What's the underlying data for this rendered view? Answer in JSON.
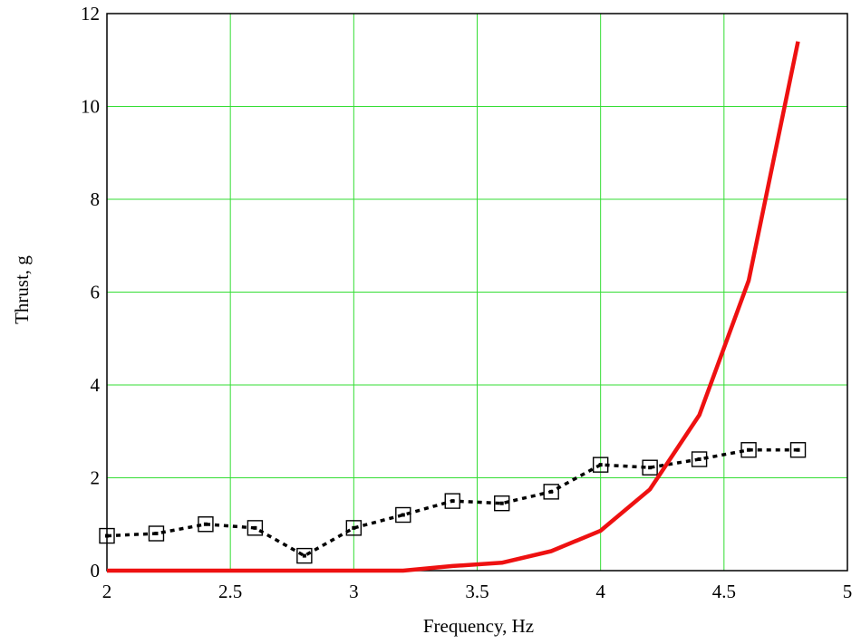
{
  "chart_data": {
    "type": "line",
    "xlabel": "Frequency, Hz",
    "ylabel": "Thrust, g",
    "xlim": [
      2,
      5
    ],
    "ylim": [
      0,
      12
    ],
    "xticks": [
      2,
      2.5,
      3,
      3.5,
      4,
      4.5,
      5
    ],
    "xtick_labels": [
      "2",
      "2.5",
      "3",
      "3.5",
      "4",
      "4.5",
      "5"
    ],
    "yticks": [
      0,
      2,
      4,
      6,
      8,
      10,
      12
    ],
    "ytick_labels": [
      "0",
      "2",
      "4",
      "6",
      "8",
      "10",
      "12"
    ],
    "grid": true,
    "grid_color": "#33dd33",
    "series": [
      {
        "style": "dotted-square-markers",
        "color": "#000000",
        "x": [
          2.0,
          2.2,
          2.4,
          2.6,
          2.8,
          3.0,
          3.2,
          3.4,
          3.6,
          3.8,
          4.0,
          4.2,
          4.4,
          4.6,
          4.8
        ],
        "y": [
          0.75,
          0.8,
          1.0,
          0.92,
          0.32,
          0.92,
          1.2,
          1.5,
          1.45,
          1.7,
          2.28,
          2.22,
          2.4,
          2.6,
          2.6
        ]
      },
      {
        "style": "solid",
        "color": "#ee1111",
        "x": [
          2.0,
          2.2,
          2.4,
          2.6,
          2.8,
          3.0,
          3.2,
          3.4,
          3.6,
          3.8,
          4.0,
          4.2,
          4.4,
          4.6,
          4.8
        ],
        "y": [
          0,
          0,
          0,
          0,
          0,
          0,
          0,
          0.1,
          0.17,
          0.42,
          0.86,
          1.75,
          3.35,
          6.25,
          11.4
        ]
      }
    ]
  }
}
